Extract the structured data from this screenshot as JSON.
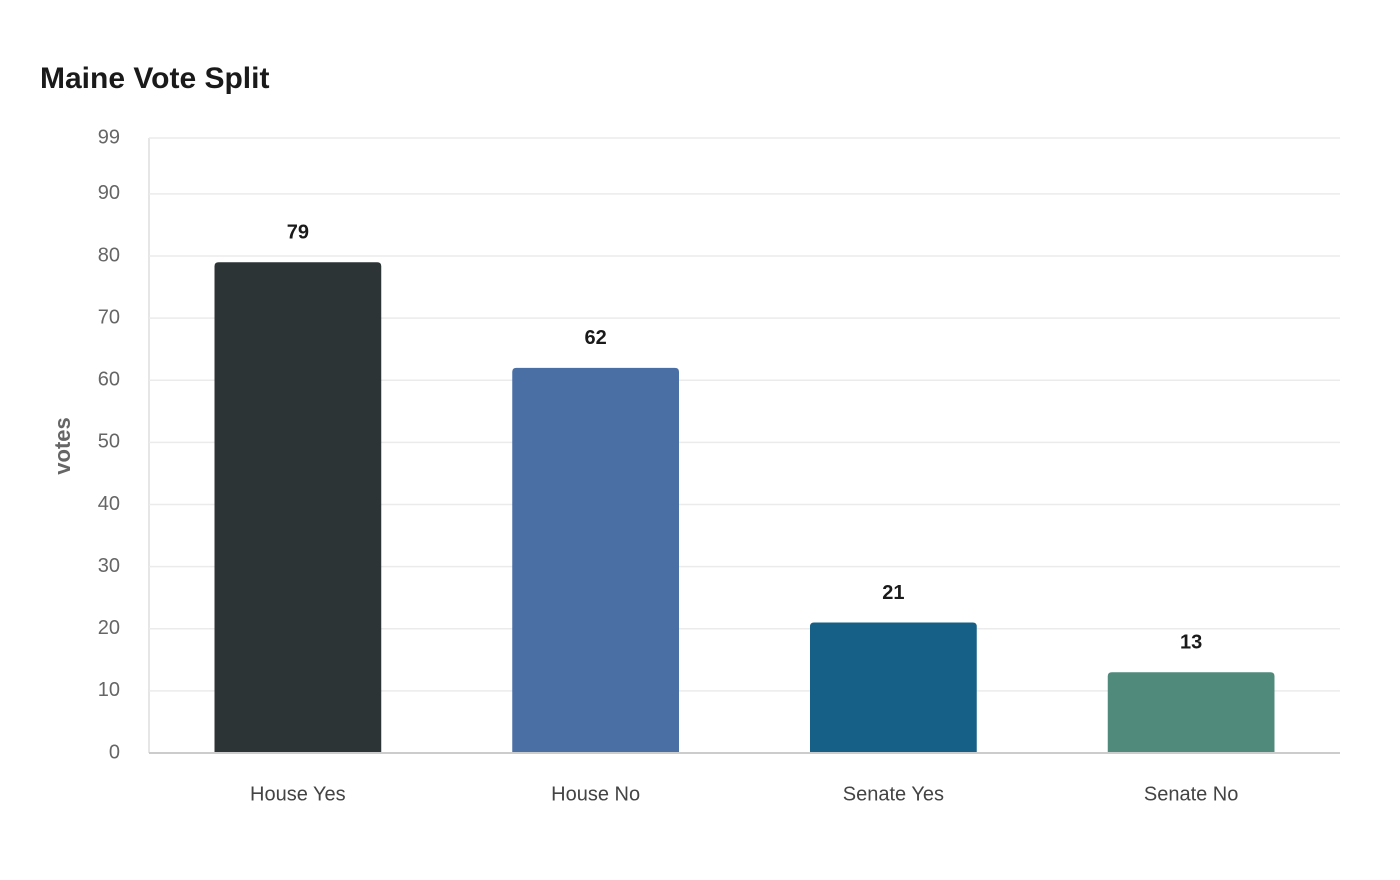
{
  "chart_data": {
    "type": "bar",
    "title": "Maine Vote Split",
    "y_label": "votes",
    "categories": [
      "House Yes",
      "House No",
      "Senate Yes",
      "Senate No"
    ],
    "values": [
      79,
      62,
      21,
      13
    ],
    "colors": [
      "#2d3436",
      "#4a6fa5",
      "#166088",
      "#4f8a7b"
    ],
    "ylim": [
      0,
      99
    ],
    "yticks": [
      0,
      10,
      20,
      30,
      40,
      50,
      60,
      70,
      80,
      90,
      99
    ],
    "grid": true
  }
}
